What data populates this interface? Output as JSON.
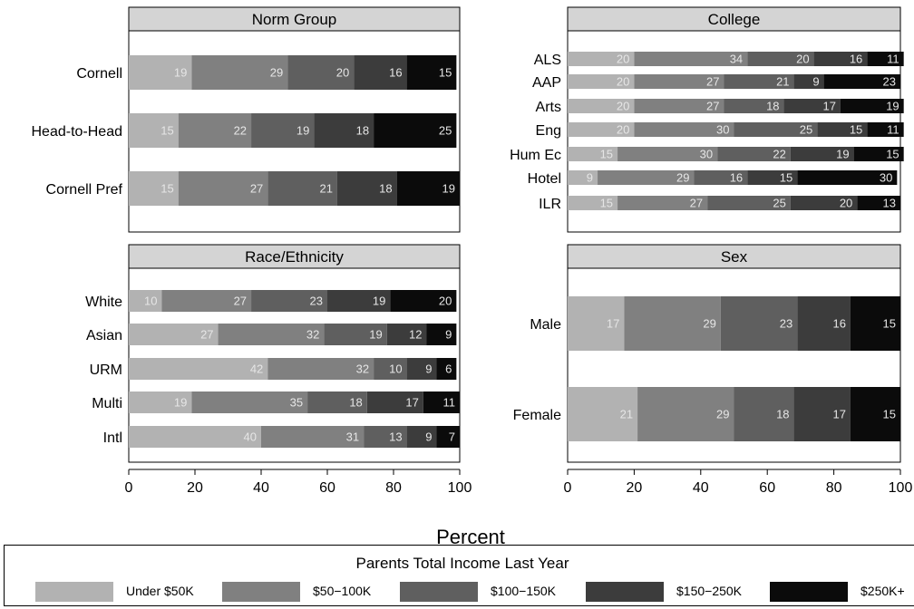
{
  "chart_data": [
    {
      "type": "bar",
      "orientation": "horizontal",
      "stacked": true,
      "title": "Norm Group",
      "categories": [
        "Cornell",
        "Head-to-Head",
        "Cornell Pref"
      ],
      "series": [
        {
          "name": "Under $50K",
          "values": [
            19,
            15,
            15
          ]
        },
        {
          "name": "$50-100K",
          "values": [
            29,
            22,
            27
          ]
        },
        {
          "name": "$100-150K",
          "values": [
            20,
            19,
            21
          ]
        },
        {
          "name": "$150-250K",
          "values": [
            16,
            18,
            18
          ]
        },
        {
          "name": "$250K+",
          "values": [
            15,
            25,
            19
          ]
        }
      ],
      "xlim": [
        0,
        100
      ]
    },
    {
      "type": "bar",
      "orientation": "horizontal",
      "stacked": true,
      "title": "College",
      "categories": [
        "ALS",
        "AAP",
        "Arts",
        "Eng",
        "Hum Ec",
        "Hotel",
        "ILR"
      ],
      "series": [
        {
          "name": "Under $50K",
          "values": [
            20,
            20,
            20,
            20,
            15,
            9,
            15
          ]
        },
        {
          "name": "$50-100K",
          "values": [
            34,
            27,
            27,
            30,
            30,
            29,
            27
          ]
        },
        {
          "name": "$100-150K",
          "values": [
            20,
            21,
            18,
            25,
            22,
            16,
            25
          ]
        },
        {
          "name": "$150-250K",
          "values": [
            16,
            9,
            17,
            15,
            19,
            15,
            20
          ]
        },
        {
          "name": "$250K+",
          "values": [
            11,
            23,
            19,
            11,
            15,
            30,
            13
          ]
        }
      ],
      "xlim": [
        0,
        100
      ]
    },
    {
      "type": "bar",
      "orientation": "horizontal",
      "stacked": true,
      "title": "Race/Ethnicity",
      "categories": [
        "White",
        "Asian",
        "URM",
        "Multi",
        "Intl"
      ],
      "series": [
        {
          "name": "Under $50K",
          "values": [
            10,
            27,
            42,
            19,
            40
          ]
        },
        {
          "name": "$50-100K",
          "values": [
            27,
            32,
            32,
            35,
            31
          ]
        },
        {
          "name": "$100-150K",
          "values": [
            23,
            19,
            10,
            18,
            13
          ]
        },
        {
          "name": "$150-250K",
          "values": [
            19,
            12,
            9,
            17,
            9
          ]
        },
        {
          "name": "$250K+",
          "values": [
            20,
            9,
            6,
            11,
            7
          ]
        }
      ],
      "xlim": [
        0,
        100
      ],
      "xticks": [
        "0",
        "20",
        "40",
        "60",
        "80",
        "100"
      ]
    },
    {
      "type": "bar",
      "orientation": "horizontal",
      "stacked": true,
      "title": "Sex",
      "categories": [
        "Male",
        "Female"
      ],
      "series": [
        {
          "name": "Under $50K",
          "values": [
            17,
            21
          ]
        },
        {
          "name": "$50-100K",
          "values": [
            29,
            29
          ]
        },
        {
          "name": "$100-150K",
          "values": [
            23,
            18
          ]
        },
        {
          "name": "$150-250K",
          "values": [
            16,
            17
          ]
        },
        {
          "name": "$250K+",
          "values": [
            15,
            15
          ]
        }
      ],
      "xlim": [
        0,
        100
      ],
      "xticks": [
        "0",
        "20",
        "40",
        "60",
        "80",
        "100"
      ]
    }
  ],
  "xlabel": "Percent",
  "legend": {
    "title": "Parents Total Income Last Year",
    "items": [
      {
        "label": "Under $50K",
        "color": "#b2b2b2"
      },
      {
        "label": "$50−100K",
        "color": "#808080"
      },
      {
        "label": "$100−150K",
        "color": "#5f5f5f"
      },
      {
        "label": "$150−250K",
        "color": "#3c3c3c"
      },
      {
        "label": "$250K+",
        "color": "#0b0b0b"
      }
    ]
  },
  "colors": {
    "strip_bg": "#d4d4d4",
    "segment_text": "#e6e6e6"
  }
}
